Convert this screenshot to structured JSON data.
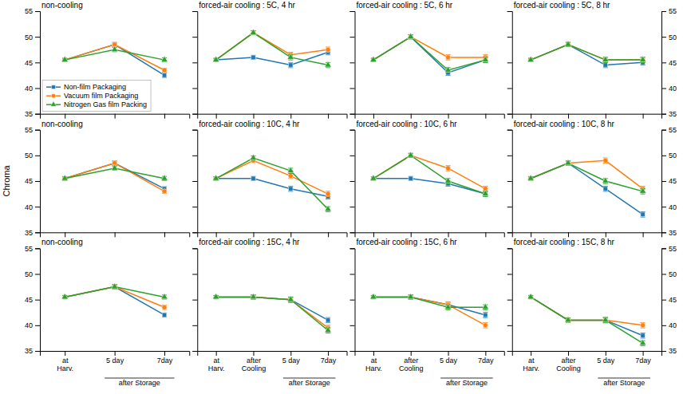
{
  "chart_data": [
    {
      "type": "line",
      "title": "non-cooling",
      "categories": [
        null,
        null,
        null
      ],
      "ylim": [
        35,
        55
      ],
      "yticks": [
        35,
        40,
        45,
        50,
        55
      ],
      "tick_labels": "y",
      "legend": "lower left",
      "series": [
        {
          "name": "Non-film Packaging",
          "marker": "square",
          "values": [
            45.5,
            48.5,
            42.5
          ],
          "errors": [
            0.3,
            0.4,
            0.4
          ]
        },
        {
          "name": "Vacuum film Packaging",
          "marker": "circle",
          "values": [
            45.5,
            48.5,
            43.5
          ],
          "errors": [
            0.3,
            0.4,
            0.4
          ]
        },
        {
          "name": "Nitrogen Gas film Packing",
          "marker": "triangle",
          "values": [
            45.5,
            47.5,
            45.5
          ],
          "errors": [
            0.3,
            0.4,
            0.4
          ]
        }
      ]
    },
    {
      "type": "line",
      "title": "forced-air cooling : 5C, 4 hr",
      "categories": [
        null,
        null,
        null,
        null
      ],
      "ylim": [
        35,
        55
      ],
      "yticks": [
        35,
        40,
        45,
        50,
        55
      ],
      "tick_labels": false,
      "series": [
        {
          "marker": "square",
          "values": [
            45.5,
            46.0,
            44.5,
            47.0
          ],
          "errors": [
            0.3,
            0.4,
            0.5,
            0.5
          ]
        },
        {
          "marker": "circle",
          "values": [
            45.5,
            50.8,
            46.5,
            47.5
          ],
          "errors": [
            0.3,
            0.4,
            0.5,
            0.5
          ]
        },
        {
          "marker": "triangle",
          "values": [
            45.5,
            50.8,
            46.0,
            44.5
          ],
          "errors": [
            0.3,
            0.4,
            0.5,
            0.5
          ]
        }
      ]
    },
    {
      "type": "line",
      "title": "forced-air cooling : 5C, 6 hr",
      "categories": [
        null,
        null,
        null,
        null
      ],
      "ylim": [
        35,
        55
      ],
      "yticks": [
        35,
        40,
        45,
        50,
        55
      ],
      "tick_labels": false,
      "series": [
        {
          "marker": "square",
          "values": [
            45.5,
            50.0,
            43.0,
            45.5
          ],
          "errors": [
            0.3,
            0.4,
            0.5,
            0.5
          ]
        },
        {
          "marker": "circle",
          "values": [
            45.5,
            50.0,
            46.0,
            46.0
          ],
          "errors": [
            0.3,
            0.4,
            0.5,
            0.5
          ]
        },
        {
          "marker": "triangle",
          "values": [
            45.5,
            50.0,
            43.5,
            45.5
          ],
          "errors": [
            0.3,
            0.4,
            0.5,
            0.5
          ]
        }
      ]
    },
    {
      "type": "line",
      "title": "forced-air cooling : 5C, 8 hr",
      "categories": [
        null,
        null,
        null,
        null
      ],
      "ylim": [
        35,
        55
      ],
      "yticks": [
        35,
        40,
        45,
        50,
        55
      ],
      "tick_labels": "y",
      "series": [
        {
          "marker": "square",
          "values": [
            45.5,
            48.5,
            44.5,
            45.0
          ],
          "errors": [
            0.3,
            0.4,
            0.5,
            0.5
          ]
        },
        {
          "marker": "circle",
          "values": [
            45.5,
            48.5,
            45.5,
            45.5
          ],
          "errors": [
            0.3,
            0.4,
            0.5,
            0.5
          ]
        },
        {
          "marker": "triangle",
          "values": [
            45.5,
            48.5,
            45.5,
            45.5
          ],
          "errors": [
            0.3,
            0.4,
            0.5,
            0.5
          ]
        }
      ]
    },
    {
      "type": "line",
      "title": "non-cooling",
      "ylabel": "Chroma",
      "categories": [
        null,
        null,
        null
      ],
      "ylim": [
        35,
        55
      ],
      "yticks": [
        35,
        40,
        45,
        50,
        55
      ],
      "tick_labels": "y",
      "series": [
        {
          "marker": "square",
          "values": [
            45.5,
            48.5,
            43.5
          ],
          "errors": [
            0.3,
            0.4,
            0.4
          ]
        },
        {
          "marker": "circle",
          "values": [
            45.5,
            48.5,
            43.0
          ],
          "errors": [
            0.3,
            0.4,
            0.4
          ]
        },
        {
          "marker": "triangle",
          "values": [
            45.5,
            47.5,
            45.5
          ],
          "errors": [
            0.3,
            0.4,
            0.4
          ]
        }
      ]
    },
    {
      "type": "line",
      "title": "forced-air cooling : 10C, 4 hr",
      "categories": [
        null,
        null,
        null,
        null
      ],
      "ylim": [
        35,
        55
      ],
      "yticks": [
        35,
        40,
        45,
        50,
        55
      ],
      "tick_labels": false,
      "series": [
        {
          "marker": "square",
          "values": [
            45.5,
            45.5,
            43.5,
            42.0
          ],
          "errors": [
            0.3,
            0.4,
            0.5,
            0.5
          ]
        },
        {
          "marker": "circle",
          "values": [
            45.5,
            49.0,
            46.0,
            42.5
          ],
          "errors": [
            0.3,
            0.4,
            0.5,
            0.5
          ]
        },
        {
          "marker": "triangle",
          "values": [
            45.5,
            49.5,
            47.0,
            39.5
          ],
          "errors": [
            0.3,
            0.4,
            0.5,
            0.5
          ]
        }
      ]
    },
    {
      "type": "line",
      "title": "forced-air cooling : 10C, 6 hr",
      "categories": [
        null,
        null,
        null,
        null
      ],
      "ylim": [
        35,
        55
      ],
      "yticks": [
        35,
        40,
        45,
        50,
        55
      ],
      "tick_labels": false,
      "series": [
        {
          "marker": "square",
          "values": [
            45.5,
            45.5,
            44.5,
            42.5
          ],
          "errors": [
            0.3,
            0.4,
            0.5,
            0.5
          ]
        },
        {
          "marker": "circle",
          "values": [
            45.5,
            50.0,
            47.5,
            43.5
          ],
          "errors": [
            0.3,
            0.4,
            0.5,
            0.5
          ]
        },
        {
          "marker": "triangle",
          "values": [
            45.5,
            50.0,
            45.0,
            42.5
          ],
          "errors": [
            0.3,
            0.4,
            0.5,
            0.5
          ]
        }
      ]
    },
    {
      "type": "line",
      "title": "forced-air cooling : 10C, 8 hr",
      "categories": [
        null,
        null,
        null,
        null
      ],
      "ylim": [
        35,
        55
      ],
      "yticks": [
        35,
        40,
        45,
        50,
        55
      ],
      "tick_labels": "y",
      "series": [
        {
          "marker": "square",
          "values": [
            45.5,
            48.5,
            43.5,
            38.5
          ],
          "errors": [
            0.3,
            0.4,
            0.5,
            0.5
          ]
        },
        {
          "marker": "circle",
          "values": [
            45.5,
            48.5,
            49.0,
            43.5
          ],
          "errors": [
            0.3,
            0.4,
            0.5,
            0.5
          ]
        },
        {
          "marker": "triangle",
          "values": [
            45.5,
            48.5,
            45.0,
            43.0
          ],
          "errors": [
            0.3,
            0.4,
            0.5,
            0.5
          ]
        }
      ]
    },
    {
      "type": "line",
      "title": "non-cooling",
      "categories": [
        "at\nHarv.",
        "5 day",
        "7day"
      ],
      "ylim": [
        35,
        55
      ],
      "yticks": [
        35,
        40,
        45,
        50,
        55
      ],
      "annotations": [
        {
          "text": "after Storage",
          "x": [
            "5 day",
            "7day"
          ]
        }
      ],
      "series": [
        {
          "marker": "square",
          "values": [
            45.5,
            47.5,
            42.0
          ],
          "errors": [
            0.3,
            0.4,
            0.4
          ]
        },
        {
          "marker": "circle",
          "values": [
            45.5,
            47.5,
            43.5
          ],
          "errors": [
            0.3,
            0.4,
            0.4
          ]
        },
        {
          "marker": "triangle",
          "values": [
            45.5,
            47.5,
            45.5
          ],
          "errors": [
            0.3,
            0.4,
            0.4
          ]
        }
      ]
    },
    {
      "type": "line",
      "title": "forced-air cooling : 15C, 4 hr",
      "categories": [
        "at\nHarv.",
        "after\nCooling",
        "5 day",
        "7day"
      ],
      "ylim": [
        35,
        55
      ],
      "yticks": [
        35,
        40,
        45,
        50,
        55
      ],
      "tick_labels": "x",
      "annotations": [
        {
          "text": "after Storage",
          "x": [
            "5 day",
            "7day"
          ]
        }
      ],
      "series": [
        {
          "marker": "square",
          "values": [
            45.5,
            45.5,
            45.0,
            41.0
          ],
          "errors": [
            0.3,
            0.4,
            0.5,
            0.5
          ]
        },
        {
          "marker": "circle",
          "values": [
            45.5,
            45.5,
            45.0,
            39.5
          ],
          "errors": [
            0.3,
            0.4,
            0.5,
            0.5
          ]
        },
        {
          "marker": "triangle",
          "values": [
            45.5,
            45.5,
            45.0,
            39.0
          ],
          "errors": [
            0.3,
            0.4,
            0.5,
            0.5
          ]
        }
      ]
    },
    {
      "type": "line",
      "title": "forced-air cooling : 15C, 6 hr",
      "categories": [
        "at\nHarv.",
        "after\nCooling",
        "5 day",
        "7day"
      ],
      "ylim": [
        35,
        55
      ],
      "yticks": [
        35,
        40,
        45,
        50,
        55
      ],
      "tick_labels": "x",
      "annotations": [
        {
          "text": "after Storage",
          "x": [
            "5 day",
            "7day"
          ]
        }
      ],
      "series": [
        {
          "marker": "square",
          "values": [
            45.5,
            45.5,
            44.0,
            42.0
          ],
          "errors": [
            0.3,
            0.4,
            0.5,
            0.5
          ]
        },
        {
          "marker": "circle",
          "values": [
            45.5,
            45.5,
            44.0,
            40.0
          ],
          "errors": [
            0.3,
            0.4,
            0.5,
            0.5
          ]
        },
        {
          "marker": "triangle",
          "values": [
            45.5,
            45.5,
            43.5,
            43.5
          ],
          "errors": [
            0.3,
            0.4,
            0.5,
            0.5
          ]
        }
      ]
    },
    {
      "type": "line",
      "title": "forced-air cooling : 15C, 8 hr",
      "categories": [
        "at\nHarv.",
        "after\nCooling",
        "5 day",
        "7day"
      ],
      "ylim": [
        35,
        55
      ],
      "yticks": [
        35,
        40,
        45,
        50,
        55
      ],
      "annotations": [
        {
          "text": "after Storage",
          "x": [
            "5 day",
            "7day"
          ]
        }
      ],
      "series": [
        {
          "marker": "square",
          "values": [
            45.5,
            41.0,
            41.0,
            38.0
          ],
          "errors": [
            0.3,
            0.4,
            0.5,
            0.5
          ]
        },
        {
          "marker": "circle",
          "values": [
            45.5,
            41.0,
            41.0,
            40.0
          ],
          "errors": [
            0.3,
            0.4,
            0.5,
            0.5
          ]
        },
        {
          "marker": "triangle",
          "values": [
            45.5,
            41.0,
            41.0,
            36.5
          ],
          "errors": [
            0.3,
            0.4,
            0.5,
            0.5
          ]
        }
      ]
    }
  ]
}
